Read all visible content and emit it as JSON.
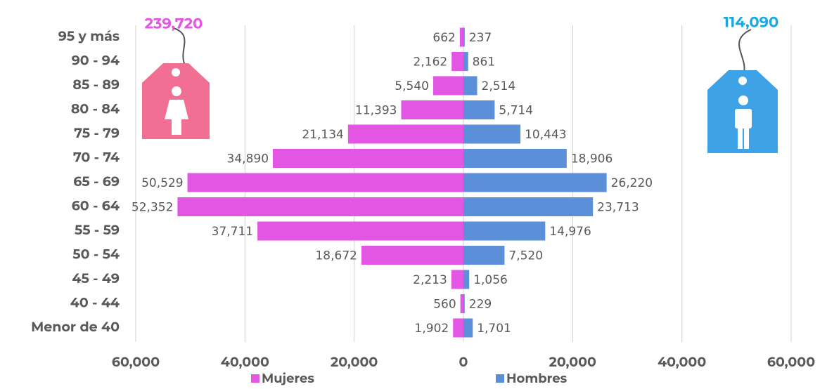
{
  "chart_data": {
    "type": "bar",
    "orientation": "horizontal",
    "categories": [
      "95 y más",
      "90 - 94",
      "85 - 89",
      "80 - 84",
      "75 - 79",
      "70 - 74",
      "65 - 69",
      "60 - 64",
      "55 - 59",
      "50 - 54",
      "45 - 49",
      "40 - 44",
      "Menor de 40"
    ],
    "series": [
      {
        "name": "Mujeres",
        "color": "#e356e3",
        "values": [
          -662,
          -2162,
          -5540,
          -11393,
          -21134,
          -34890,
          -50529,
          -52352,
          -37711,
          -18672,
          -2213,
          -560,
          -1902
        ],
        "value_labels": [
          "662",
          "2,162",
          "5,540",
          "11,393",
          "21,134",
          "34,890",
          "50,529",
          "52,352",
          "37,711",
          "18,672",
          "2,213",
          "560",
          "1,902"
        ]
      },
      {
        "name": "Hombres",
        "color": "#5b8fd8",
        "values": [
          237,
          861,
          2514,
          5714,
          10443,
          18906,
          26220,
          23713,
          14976,
          7520,
          1056,
          229,
          1701
        ],
        "value_labels": [
          "237",
          "861",
          "2,514",
          "5,714",
          "10,443",
          "18,906",
          "26,220",
          "23,713",
          "14,976",
          "7,520",
          "1,056",
          "229",
          "1,701"
        ]
      }
    ],
    "xlim": [
      -60000,
      60000
    ],
    "xticks": [
      {
        "value": -60000,
        "label": "60,000"
      },
      {
        "value": -40000,
        "label": "40,000"
      },
      {
        "value": -20000,
        "label": "20,000"
      },
      0,
      {
        "value": 20000,
        "label": "20,000"
      },
      {
        "value": 40000,
        "label": "40,000"
      },
      {
        "value": 60000,
        "label": "60,000"
      }
    ],
    "grid": true,
    "legend": "bottom",
    "annotations": [
      {
        "text": "239,720",
        "color": "#e356e3"
      },
      {
        "text": "114,090",
        "color": "#1aa7e8"
      }
    ]
  }
}
